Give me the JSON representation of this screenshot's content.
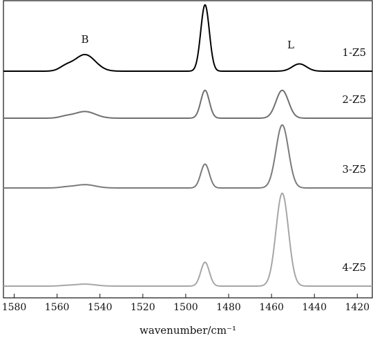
{
  "chart_data": {
    "type": "line",
    "xlabel": "wavenumber/cm⁻¹",
    "ylabel": "",
    "xlim": [
      1585,
      1413
    ],
    "x_reversed": true,
    "xticks": [
      1580,
      1560,
      1540,
      1520,
      1500,
      1480,
      1460,
      1440,
      1420
    ],
    "y_axis_shown": false,
    "grid": false,
    "band_labels": [
      {
        "text": "B",
        "x": 1547
      },
      {
        "text": "L",
        "x": 1451
      }
    ],
    "peaks": [
      {
        "name": "B",
        "center": 1547
      },
      {
        "name": "mid",
        "center": 1491
      },
      {
        "name": "L",
        "center": 1455
      }
    ],
    "series": [
      {
        "name": "1-Z5",
        "color": "#000000",
        "baseline": 0,
        "amplitudes": {
          "B": 0.25,
          "mid": 1.0,
          "L": 0.11,
          "L_center": 1447
        }
      },
      {
        "name": "2-Z5",
        "color": "#6f6f6f",
        "baseline": 0,
        "amplitudes": {
          "B": 0.1,
          "mid": 0.42,
          "L": 0.42
        }
      },
      {
        "name": "3-Z5",
        "color": "#7a7a7a",
        "baseline": 0,
        "amplitudes": {
          "B": 0.05,
          "mid": 0.36,
          "L": 0.95
        }
      },
      {
        "name": "4-Z5",
        "color": "#a6a6a6",
        "baseline": 0,
        "amplitudes": {
          "B": 0.03,
          "mid": 0.36,
          "L": 1.4
        }
      }
    ]
  }
}
